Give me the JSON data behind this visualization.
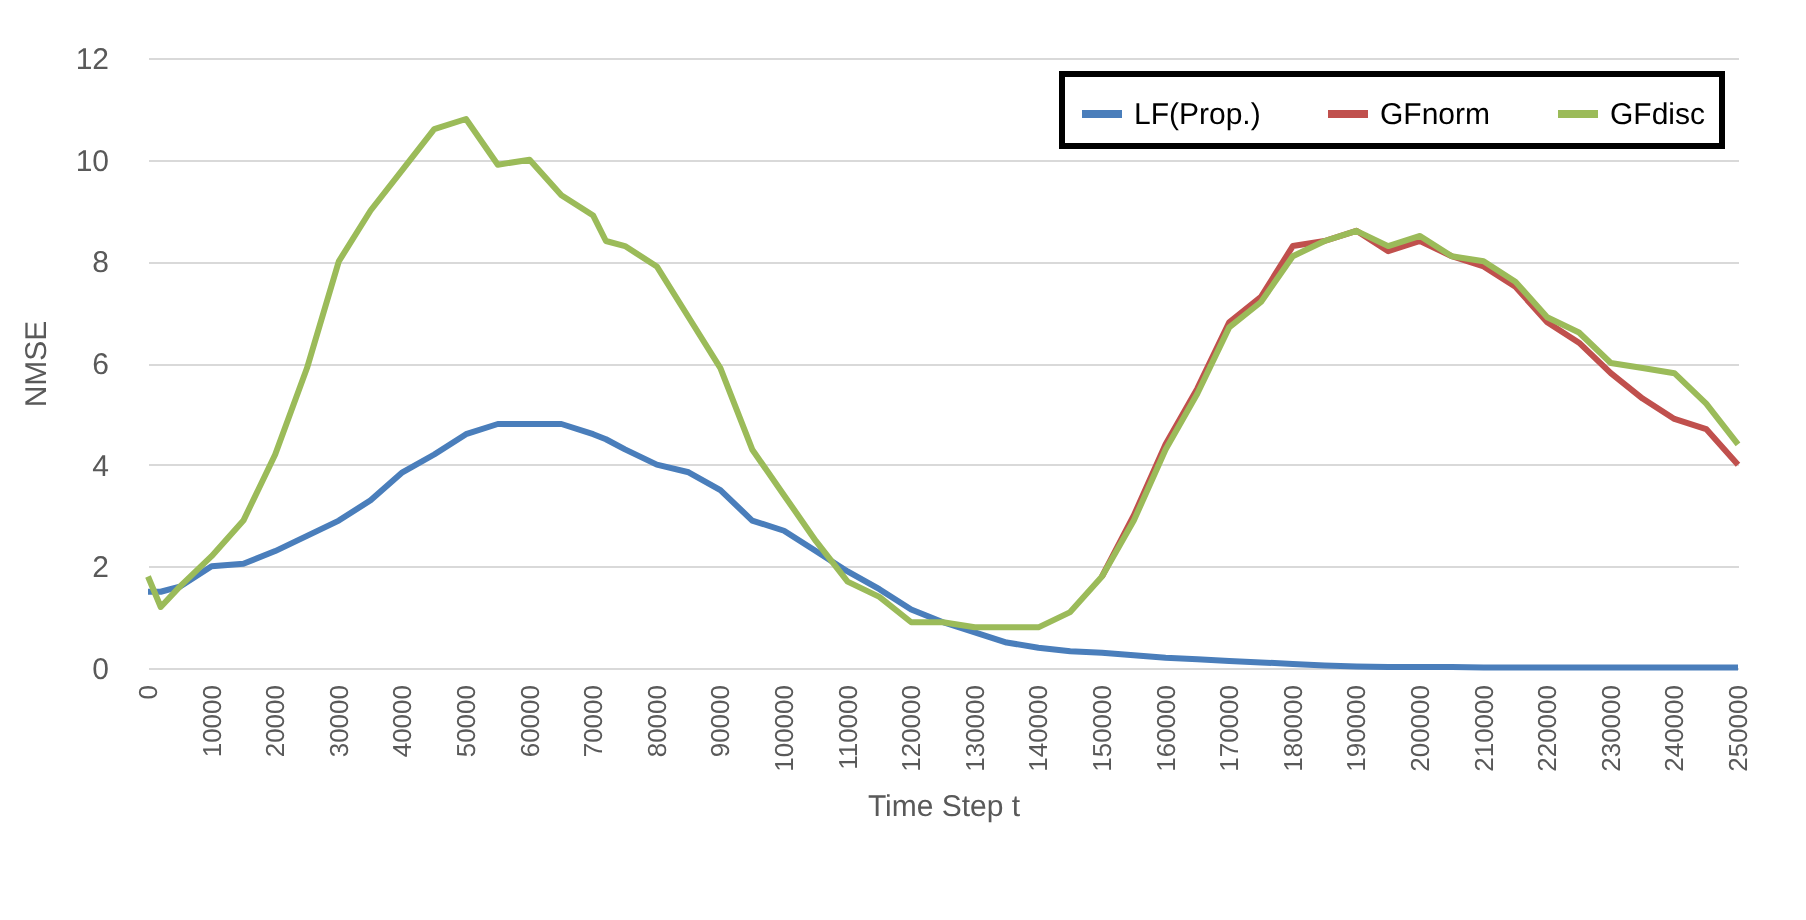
{
  "chart_data": {
    "type": "line",
    "xlabel": "Time Step t",
    "ylabel": "NMSE",
    "x": [
      0,
      2000,
      5000,
      10000,
      15000,
      20000,
      25000,
      30000,
      35000,
      40000,
      45000,
      50000,
      55000,
      60000,
      65000,
      70000,
      72000,
      75000,
      80000,
      85000,
      90000,
      95000,
      100000,
      105000,
      110000,
      115000,
      120000,
      125000,
      130000,
      135000,
      140000,
      145000,
      150000,
      155000,
      160000,
      165000,
      170000,
      175000,
      180000,
      185000,
      190000,
      195000,
      200000,
      205000,
      210000,
      215000,
      220000,
      225000,
      230000,
      235000,
      240000,
      245000,
      250000
    ],
    "series": [
      {
        "name": "LF(Prop.)",
        "color": "#4a7ebb",
        "values": [
          1.5,
          1.5,
          1.6,
          2.0,
          2.05,
          2.3,
          2.6,
          2.9,
          3.3,
          3.85,
          4.2,
          4.6,
          4.8,
          4.8,
          4.8,
          4.6,
          4.5,
          4.3,
          4.0,
          3.85,
          3.5,
          2.9,
          2.7,
          2.3,
          1.9,
          1.55,
          1.15,
          0.9,
          0.7,
          0.5,
          0.4,
          0.33,
          0.3,
          0.25,
          0.2,
          0.17,
          0.14,
          0.11,
          0.08,
          0.05,
          0.03,
          0.02,
          0.02,
          0.02,
          0.01,
          0.01,
          0.01,
          0.01,
          0.01,
          0.01,
          0.01,
          0.01,
          0.01
        ]
      },
      {
        "name": "GFnorm",
        "color": "#c0504d",
        "values": [
          null,
          null,
          null,
          null,
          null,
          null,
          null,
          null,
          null,
          null,
          null,
          null,
          null,
          null,
          null,
          null,
          null,
          null,
          null,
          null,
          null,
          null,
          null,
          null,
          null,
          null,
          null,
          null,
          null,
          null,
          null,
          null,
          1.8,
          3.0,
          4.4,
          5.5,
          6.8,
          7.3,
          8.3,
          8.4,
          8.6,
          8.2,
          8.4,
          8.1,
          7.9,
          7.5,
          6.8,
          6.4,
          5.8,
          5.3,
          4.9,
          4.7,
          4.0
        ]
      },
      {
        "name": "GFdisc",
        "color": "#9bbb59",
        "values": [
          1.8,
          1.2,
          1.6,
          2.2,
          2.9,
          4.2,
          5.9,
          8.0,
          9.0,
          9.8,
          10.6,
          10.8,
          9.9,
          10.0,
          9.3,
          8.9,
          8.4,
          8.3,
          7.9,
          6.9,
          5.9,
          4.3,
          3.4,
          2.5,
          1.7,
          1.4,
          0.9,
          0.9,
          0.8,
          0.8,
          0.8,
          1.1,
          1.8,
          2.9,
          4.3,
          5.4,
          6.7,
          7.2,
          8.1,
          8.4,
          8.6,
          8.3,
          8.5,
          8.1,
          8.0,
          7.6,
          6.9,
          6.6,
          6.0,
          5.9,
          5.8,
          5.2,
          4.4
        ]
      }
    ],
    "xlim": [
      0,
      250000
    ],
    "xticks": [
      0,
      10000,
      20000,
      30000,
      40000,
      50000,
      60000,
      70000,
      80000,
      90000,
      100000,
      110000,
      120000,
      130000,
      140000,
      150000,
      160000,
      170000,
      180000,
      190000,
      200000,
      210000,
      220000,
      230000,
      240000,
      250000
    ],
    "ylim": [
      0,
      12
    ],
    "yticks": [
      0,
      2,
      4,
      6,
      8,
      10,
      12
    ],
    "grid": "y",
    "legend": "top right"
  }
}
